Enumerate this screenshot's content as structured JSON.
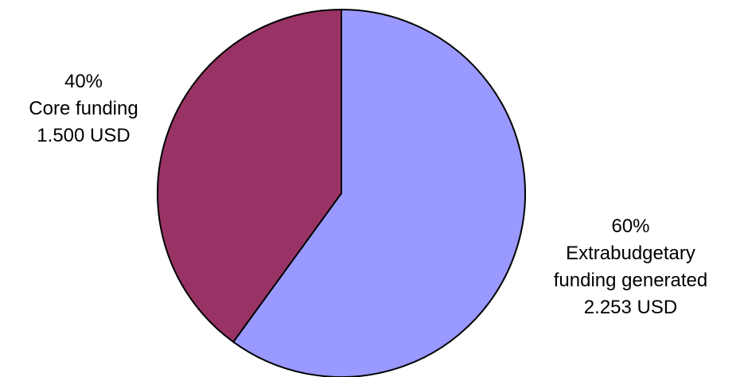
{
  "chart_data": {
    "type": "pie",
    "start_angle_deg": 0,
    "direction": "clockwise",
    "slices": [
      {
        "key": "extra",
        "percent": 60,
        "percent_label": "60%",
        "name_lines": [
          "Extrabudgetary",
          "funding generated"
        ],
        "amount_label": "2.253 USD",
        "color": "#9999ff"
      },
      {
        "key": "core",
        "percent": 40,
        "percent_label": "40%",
        "name_lines": [
          "Core funding"
        ],
        "amount_label": "1.500 USD",
        "color": "#993366"
      }
    ],
    "edge_color": "#000000"
  }
}
